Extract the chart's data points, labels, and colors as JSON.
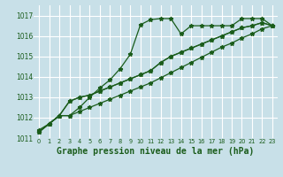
{
  "bg_color": "#c8e0e8",
  "grid_color": "#b0d0da",
  "line_color": "#1a5c1a",
  "title": "Graphe pression niveau de la mer (hPa)",
  "ylim": [
    1011,
    1017.5
  ],
  "xlim": [
    -0.5,
    23.5
  ],
  "yticks": [
    1011,
    1012,
    1013,
    1014,
    1015,
    1016,
    1017
  ],
  "xticks": [
    0,
    1,
    2,
    3,
    4,
    5,
    6,
    7,
    8,
    9,
    10,
    11,
    12,
    13,
    14,
    15,
    16,
    17,
    18,
    19,
    20,
    21,
    22,
    23
  ],
  "line1": [
    1011.3,
    1011.7,
    1012.1,
    1012.8,
    1013.0,
    1013.1,
    1013.3,
    1013.5,
    1013.7,
    1013.9,
    1014.1,
    1014.3,
    1014.7,
    1015.0,
    1015.2,
    1015.4,
    1015.6,
    1015.8,
    1016.0,
    1016.2,
    1016.4,
    1016.5,
    1016.65,
    1016.5
  ],
  "line2": [
    1011.3,
    1011.7,
    1012.1,
    1012.1,
    1012.3,
    1012.5,
    1012.7,
    1012.9,
    1013.1,
    1013.3,
    1013.5,
    1013.7,
    1013.95,
    1014.2,
    1014.45,
    1014.7,
    1014.95,
    1015.2,
    1015.45,
    1015.65,
    1015.9,
    1016.1,
    1016.35,
    1016.5
  ],
  "line3": [
    1011.4,
    1011.7,
    1012.1,
    1012.1,
    1012.5,
    1013.0,
    1013.45,
    1013.85,
    1014.4,
    1015.1,
    1016.55,
    1016.8,
    1016.85,
    1016.85,
    1016.1,
    1016.5,
    1016.5,
    1016.5,
    1016.5,
    1016.5,
    1016.85,
    1016.85,
    1016.85,
    1016.5
  ],
  "line4": [
    1011.3,
    1011.7,
    1012.1,
    1012.8,
    1013.0,
    1013.1,
    1013.3,
    1013.5,
    1013.7,
    1013.9,
    1014.1,
    1014.3,
    1014.7,
    1015.0,
    1015.2,
    1015.4,
    1015.6,
    1015.8,
    1016.0,
    1016.2,
    1016.4,
    1016.5,
    1016.65,
    1016.5
  ]
}
